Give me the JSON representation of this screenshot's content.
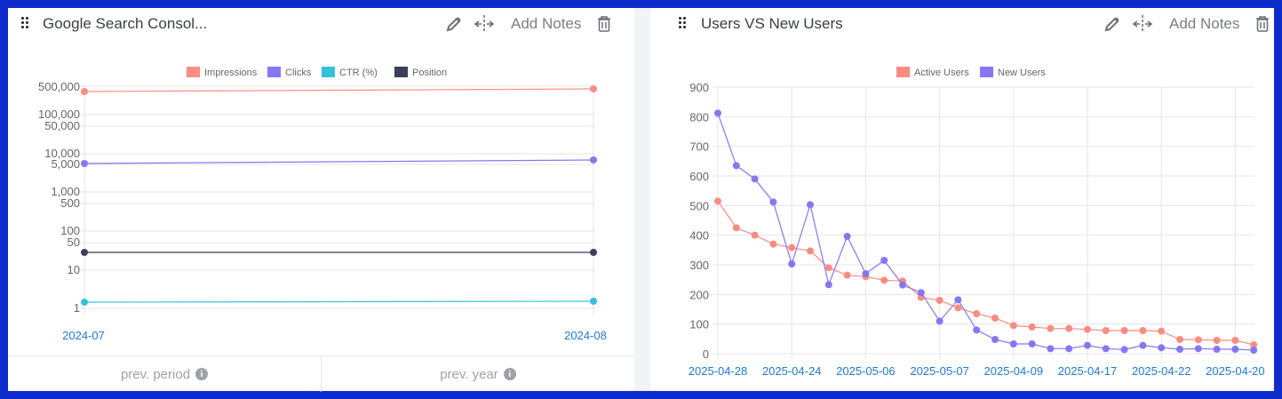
{
  "widgets": [
    {
      "title": "Google Search Consol...",
      "add_notes_label": "Add Notes",
      "icons": [
        "drag-handle-icon",
        "pencil-icon",
        "move-horizontal-icon",
        "trash-icon"
      ],
      "footer": [
        {
          "label": "prev. period",
          "icon": "info-icon"
        },
        {
          "label": "prev. year",
          "icon": "info-icon"
        }
      ]
    },
    {
      "title": "Users VS New Users",
      "add_notes_label": "Add Notes",
      "icons": [
        "drag-handle-icon",
        "pencil-icon",
        "move-horizontal-icon",
        "trash-icon"
      ]
    }
  ],
  "colors": {
    "impressions": "#fa8c82",
    "clicks": "#8577f2",
    "ctr": "#37c0dc",
    "position": "#3d3d5c",
    "active_users": "#fa8c82",
    "new_users": "#8577f2",
    "axis_label": "#1e7ad1",
    "frame": "#0e2bcc"
  },
  "chart_data": [
    {
      "type": "line",
      "title": "Google Search Console",
      "x": [
        "2024-07",
        "2024-08"
      ],
      "series": [
        {
          "name": "Impressions",
          "values": [
            350000,
            420000
          ]
        },
        {
          "name": "Clicks",
          "values": [
            4800,
            6000
          ]
        },
        {
          "name": "CTR (%)",
          "values": [
            1.35,
            1.4
          ]
        },
        {
          "name": "Position",
          "values": [
            27,
            26
          ]
        }
      ],
      "yscale": "log",
      "yticks": [
        "500,000",
        "100,000",
        "50,000",
        "10,000",
        "5,000",
        "1,000",
        "500",
        "100",
        "50",
        "10",
        "1"
      ],
      "ylim": [
        1,
        500000
      ],
      "legend_position": "top",
      "grid": true,
      "xlabel": "",
      "ylabel": ""
    },
    {
      "type": "line",
      "title": "Users VS New Users",
      "xtick_labels": [
        "2025-04-28",
        "2025-04-24",
        "2025-05-06",
        "2025-05-07",
        "2025-04-09",
        "2025-04-17",
        "2025-04-22",
        "2025-04-20"
      ],
      "point_count": 30,
      "series": [
        {
          "name": "Active Users",
          "values": [
            515,
            425,
            400,
            370,
            358,
            347,
            290,
            265,
            260,
            248,
            245,
            190,
            180,
            155,
            135,
            120,
            95,
            90,
            85,
            85,
            82,
            78,
            78,
            78,
            76,
            48,
            47,
            45,
            45,
            30
          ]
        },
        {
          "name": "New Users",
          "values": [
            812,
            635,
            590,
            512,
            303,
            503,
            233,
            396,
            270,
            315,
            232,
            206,
            110,
            182,
            80,
            48,
            33,
            33,
            17,
            17,
            28,
            17,
            14,
            28,
            20,
            15,
            17,
            15,
            15,
            12
          ]
        }
      ],
      "yticks": [
        0,
        100,
        200,
        300,
        400,
        500,
        600,
        700,
        800,
        900
      ],
      "ylim": [
        0,
        900
      ],
      "legend_position": "top",
      "grid": true,
      "xlabel": "",
      "ylabel": ""
    }
  ]
}
